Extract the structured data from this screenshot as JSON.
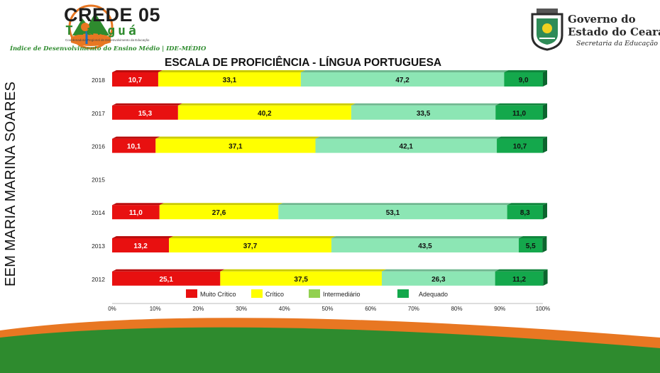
{
  "header": {
    "crede_title": "CREDE 05",
    "crede_city": "Tianguá",
    "crede_subtitle": "Coordenadoria Regional de Desenvolvimento da Educação",
    "crede_index": "Índice de Desenvolvimento do Ensino Médio | IDE-MÉDIO",
    "gov_line1": "Governo do",
    "gov_line2": "Estado do Ceará",
    "gov_sub": "Secretaria da Educação"
  },
  "school": "EEM MARIA MARINA SOARES",
  "colors": {
    "muito_critico": "#e81010",
    "critico": "#ffff00",
    "intermediario": "#8ce6b4",
    "adequado": "#14a84c",
    "legend_intermediario": "#92d050"
  },
  "chart_data": {
    "type": "bar",
    "orientation": "horizontal-stacked-100",
    "title": "ESCALA DE PROFICIÊNCIA - LÍNGUA PORTUGUESA",
    "categories": [
      "2018",
      "2017",
      "2016",
      "2015",
      "2014",
      "2013",
      "2012"
    ],
    "series": [
      {
        "name": "Muito Crítico",
        "values": [
          10.7,
          15.3,
          10.1,
          null,
          11.0,
          13.2,
          25.1
        ],
        "labels": [
          "10,7",
          "15,3",
          "10,1",
          "",
          "11,0",
          "13,2",
          "25,1"
        ]
      },
      {
        "name": "Crítico",
        "values": [
          33.1,
          40.2,
          37.1,
          null,
          27.6,
          37.7,
          37.5
        ],
        "labels": [
          "33,1",
          "40,2",
          "37,1",
          "",
          "27,6",
          "37,7",
          "37,5"
        ]
      },
      {
        "name": "Intermediário",
        "values": [
          47.2,
          33.5,
          42.1,
          null,
          53.1,
          43.5,
          26.3
        ],
        "labels": [
          "47,2",
          "33,5",
          "42,1",
          "",
          "53,1",
          "43,5",
          "26,3"
        ]
      },
      {
        "name": "Adequado",
        "values": [
          9.0,
          11.0,
          10.7,
          null,
          8.3,
          5.5,
          11.2
        ],
        "labels": [
          "9,0",
          "11,0",
          "10,7",
          "",
          "8,3",
          "5,5",
          "11,2"
        ]
      }
    ],
    "x_ticks": [
      "0%",
      "10%",
      "20%",
      "30%",
      "40%",
      "50%",
      "60%",
      "70%",
      "80%",
      "90%",
      "100%"
    ],
    "xlim": [
      0,
      100
    ],
    "legend_position": "bottom"
  }
}
